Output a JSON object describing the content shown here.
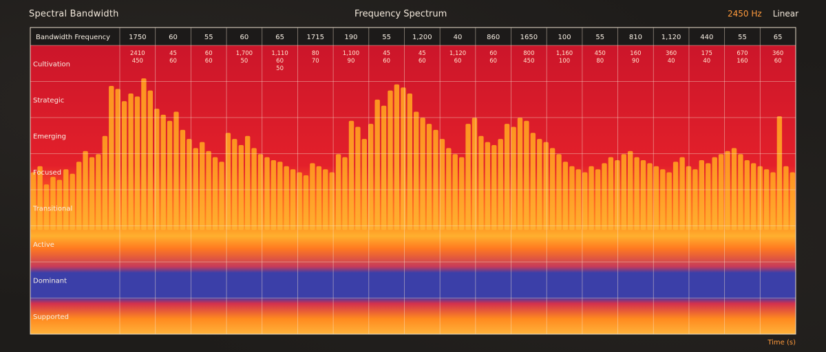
{
  "header": {
    "title_left": "Spectral Bandwidth",
    "title_center": "Frequency Spectrum",
    "top_right_value": "2450 Hz",
    "top_right_scale": "Linear"
  },
  "footer": {
    "bottom_right_label": "Time (s)"
  },
  "colors": {
    "background": "#1e1c1a",
    "low": "#cf1a2a",
    "mid": "#ff8a1f",
    "high": "#ffb02e",
    "band": "#3b3fa8"
  },
  "chart_data": {
    "type": "heatmap",
    "title": "Frequency Spectrum",
    "columns_header": [
      "Bandwidth Frequency",
      "1750",
      "60",
      "55",
      "60",
      "65",
      "1715",
      "190",
      "55",
      "1,200",
      "40",
      "860",
      "1650",
      "100",
      "55",
      "810",
      "1,120",
      "440",
      "55",
      "65"
    ],
    "row_labels": [
      "Cultivation",
      "Strategic",
      "Emerging",
      "Focused",
      "Transitional",
      "Active",
      "Dominant",
      "Supported"
    ],
    "cell_annotations": [
      [
        "2410",
        "450"
      ],
      [
        "45",
        "60"
      ],
      [
        "60",
        "60"
      ],
      [
        "1,700",
        "50"
      ],
      [
        "1,110",
        "60",
        "50"
      ],
      [
        "80",
        "70"
      ],
      [
        "1,100",
        "90"
      ],
      [
        "45",
        "60"
      ],
      [
        "45",
        "60"
      ],
      [
        "1,120",
        "60"
      ],
      [
        "60",
        "60"
      ],
      [
        "800",
        "450"
      ],
      [
        "1,160",
        "100"
      ],
      [
        "450",
        "80"
      ],
      [
        "160",
        "90"
      ],
      [
        "360",
        "40"
      ],
      [
        "175",
        "40"
      ],
      [
        "670",
        "160"
      ],
      [
        "360",
        "60"
      ]
    ],
    "bar_heights": [
      0.38,
      0.42,
      0.3,
      0.35,
      0.33,
      0.4,
      0.37,
      0.45,
      0.52,
      0.48,
      0.5,
      0.62,
      0.95,
      0.93,
      0.85,
      0.9,
      0.88,
      1.0,
      0.92,
      0.8,
      0.76,
      0.72,
      0.78,
      0.66,
      0.6,
      0.54,
      0.58,
      0.52,
      0.48,
      0.45,
      0.64,
      0.6,
      0.56,
      0.62,
      0.54,
      0.5,
      0.48,
      0.46,
      0.45,
      0.42,
      0.4,
      0.38,
      0.36,
      0.44,
      0.42,
      0.4,
      0.38,
      0.5,
      0.48,
      0.72,
      0.68,
      0.6,
      0.7,
      0.86,
      0.82,
      0.92,
      0.96,
      0.94,
      0.9,
      0.78,
      0.74,
      0.7,
      0.66,
      0.6,
      0.54,
      0.5,
      0.48,
      0.7,
      0.74,
      0.62,
      0.58,
      0.56,
      0.6,
      0.7,
      0.68,
      0.74,
      0.72,
      0.64,
      0.6,
      0.58,
      0.54,
      0.5,
      0.45,
      0.42,
      0.4,
      0.38,
      0.42,
      0.4,
      0.44,
      0.48,
      0.46,
      0.5,
      0.52,
      0.48,
      0.46,
      0.44,
      0.42,
      0.4,
      0.38,
      0.45,
      0.48,
      0.42,
      0.4,
      0.46,
      0.44,
      0.48,
      0.5,
      0.52,
      0.54,
      0.5,
      0.46,
      0.44,
      0.42,
      0.4,
      0.38,
      0.75,
      0.42,
      0.38
    ],
    "colorbar": "red-orange-blue",
    "grid": true
  }
}
